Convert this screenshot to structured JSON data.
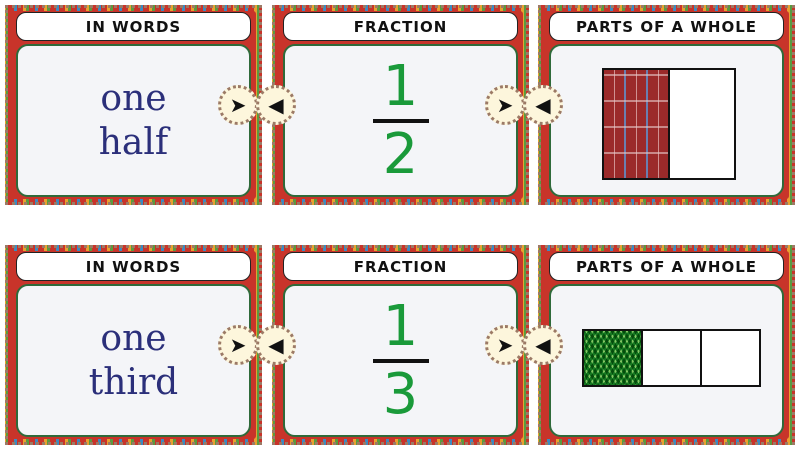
{
  "rows": [
    {
      "words_header": "IN WORDS",
      "fraction_header": "FRACTION",
      "parts_header": "PARTS OF A WHOLE",
      "word1": "one",
      "word2": "half",
      "numerator": "1",
      "denominator": "2",
      "parts_total": 2,
      "parts_shaded": 1,
      "shade_color": "#9b2a2a"
    },
    {
      "words_header": "IN WORDS",
      "fraction_header": "FRACTION",
      "parts_header": "PARTS OF A WHOLE",
      "word1": "one",
      "word2": "third",
      "numerator": "1",
      "denominator": "3",
      "parts_total": 3,
      "parts_shaded": 1,
      "shade_color": "#1e8a36"
    }
  ],
  "connector": {
    "right_glyph": "➤",
    "left_glyph": "◀"
  },
  "colors": {
    "words": "#2b2f7a",
    "fraction": "#1a9a3a",
    "border": "#c8342a"
  }
}
